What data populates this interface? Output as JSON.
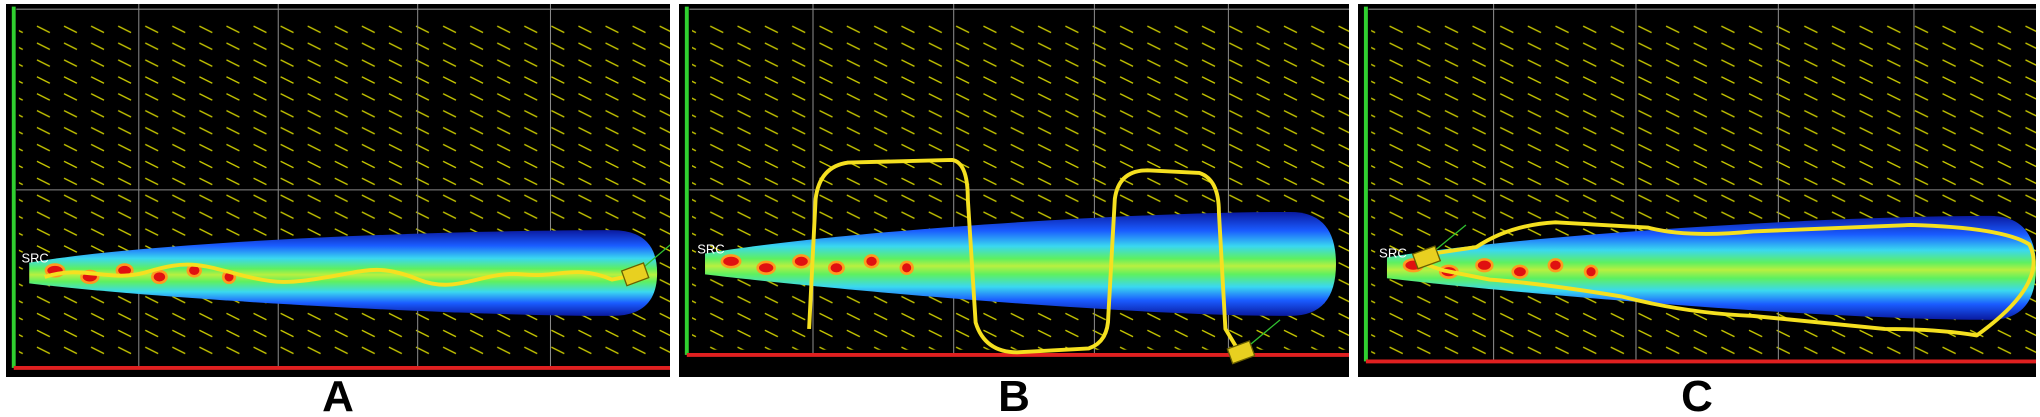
{
  "panels": [
    {
      "label": "A",
      "source": "SRC"
    },
    {
      "label": "B",
      "source": "SRC"
    },
    {
      "label": "C",
      "source": "SRC"
    }
  ]
}
